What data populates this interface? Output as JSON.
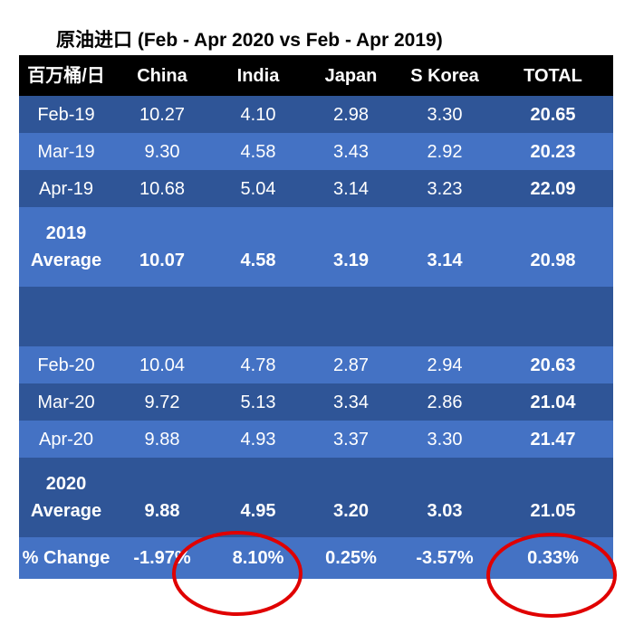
{
  "title": "原油进口 (Feb - Apr 2020 vs Feb - Apr 2019)",
  "colors": {
    "header": "#000000",
    "row_dark": "#2f5597",
    "row_light": "#4472c4",
    "annotation": "#e00000"
  },
  "chart_data": {
    "type": "table",
    "title": "原油进口 (Feb - Apr 2020 vs Feb - Apr 2019)",
    "columns": [
      "百万桶/日",
      "China",
      "India",
      "Japan",
      "S Korea",
      "TOTAL"
    ],
    "rows": [
      {
        "label": "Feb-19",
        "values": [
          "10.27",
          "4.10",
          "2.98",
          "3.30",
          "20.65"
        ]
      },
      {
        "label": "Mar-19",
        "values": [
          "9.30",
          "4.58",
          "3.43",
          "2.92",
          "20.23"
        ]
      },
      {
        "label": "Apr-19",
        "values": [
          "10.68",
          "5.04",
          "3.14",
          "3.23",
          "22.09"
        ]
      },
      {
        "label": "2019 Average",
        "label_lines": [
          "2019",
          "Average"
        ],
        "values": [
          "10.07",
          "4.58",
          "3.19",
          "3.14",
          "20.98"
        ]
      },
      {
        "label": "Feb-20",
        "values": [
          "10.04",
          "4.78",
          "2.87",
          "2.94",
          "20.63"
        ]
      },
      {
        "label": "Mar-20",
        "values": [
          "9.72",
          "5.13",
          "3.34",
          "2.86",
          "21.04"
        ]
      },
      {
        "label": "Apr-20",
        "values": [
          "9.88",
          "4.93",
          "3.37",
          "3.30",
          "21.47"
        ]
      },
      {
        "label": "2020 Average",
        "label_lines": [
          "2020",
          "Average"
        ],
        "values": [
          "9.88",
          "4.95",
          "3.20",
          "3.03",
          "21.05"
        ]
      },
      {
        "label": "% Change",
        "values": [
          "-1.97%",
          "8.10%",
          "0.25%",
          "-3.57%",
          "0.33%"
        ]
      }
    ],
    "annotations": [
      "circle around India % Change",
      "circle around TOTAL % Change"
    ]
  }
}
